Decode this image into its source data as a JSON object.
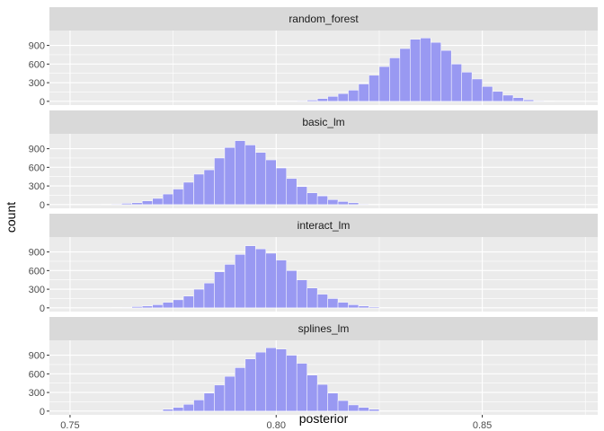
{
  "chart_data": {
    "type": "bar",
    "xlabel": "posterior",
    "ylabel": "count",
    "xlim": [
      0.745,
      0.878
    ],
    "ylim": [
      -60,
      1140
    ],
    "x_ticks": [
      0.75,
      0.8,
      0.85
    ],
    "x_tick_labels": [
      "0.75",
      "0.80",
      "0.85"
    ],
    "y_ticks": [
      0,
      300,
      600,
      900
    ],
    "y_tick_labels": [
      "0",
      "300",
      "600",
      "900"
    ],
    "bin_width": 0.0025,
    "grid": true,
    "colors": {
      "bar_fill": "#9999f2",
      "bar_outline": "#ffffff",
      "panel_bg": "#ebebeb",
      "strip_bg": "#d9d9d9"
    },
    "panels": [
      {
        "name": "random_forest",
        "bins": [
          [
            0.80125,
            2
          ],
          [
            0.80375,
            6
          ],
          [
            0.80625,
            10
          ],
          [
            0.80875,
            20
          ],
          [
            0.81125,
            45
          ],
          [
            0.81375,
            80
          ],
          [
            0.81625,
            125
          ],
          [
            0.81875,
            180
          ],
          [
            0.82125,
            280
          ],
          [
            0.82375,
            420
          ],
          [
            0.82625,
            560
          ],
          [
            0.82875,
            700
          ],
          [
            0.83125,
            850
          ],
          [
            0.83375,
            1000
          ],
          [
            0.83625,
            1020
          ],
          [
            0.83875,
            950
          ],
          [
            0.84125,
            820
          ],
          [
            0.84375,
            600
          ],
          [
            0.84625,
            470
          ],
          [
            0.84875,
            360
          ],
          [
            0.85125,
            240
          ],
          [
            0.85375,
            160
          ],
          [
            0.85625,
            100
          ],
          [
            0.85875,
            60
          ],
          [
            0.86125,
            25
          ],
          [
            0.86375,
            10
          ],
          [
            0.86625,
            4
          ]
        ]
      },
      {
        "name": "basic_lm",
        "bins": [
          [
            0.75125,
            4
          ],
          [
            0.75375,
            2
          ],
          [
            0.75875,
            4
          ],
          [
            0.76125,
            10
          ],
          [
            0.76375,
            20
          ],
          [
            0.76625,
            30
          ],
          [
            0.76875,
            60
          ],
          [
            0.77125,
            100
          ],
          [
            0.77375,
            170
          ],
          [
            0.77625,
            250
          ],
          [
            0.77875,
            360
          ],
          [
            0.78125,
            490
          ],
          [
            0.78375,
            560
          ],
          [
            0.78625,
            750
          ],
          [
            0.78875,
            920
          ],
          [
            0.79125,
            1030
          ],
          [
            0.79375,
            960
          ],
          [
            0.79625,
            840
          ],
          [
            0.79875,
            720
          ],
          [
            0.80125,
            590
          ],
          [
            0.80375,
            420
          ],
          [
            0.80625,
            290
          ],
          [
            0.80875,
            190
          ],
          [
            0.81125,
            140
          ],
          [
            0.81375,
            80
          ],
          [
            0.81625,
            50
          ],
          [
            0.81875,
            30
          ],
          [
            0.82125,
            10
          ],
          [
            0.82375,
            4
          ]
        ]
      },
      {
        "name": "interact_lm",
        "bins": [
          [
            0.75125,
            2
          ],
          [
            0.75875,
            2
          ],
          [
            0.76125,
            4
          ],
          [
            0.76375,
            8
          ],
          [
            0.76625,
            20
          ],
          [
            0.76875,
            30
          ],
          [
            0.77125,
            50
          ],
          [
            0.77375,
            90
          ],
          [
            0.77625,
            130
          ],
          [
            0.77875,
            190
          ],
          [
            0.78125,
            300
          ],
          [
            0.78375,
            400
          ],
          [
            0.78625,
            580
          ],
          [
            0.78875,
            700
          ],
          [
            0.79125,
            860
          ],
          [
            0.79375,
            1000
          ],
          [
            0.79625,
            950
          ],
          [
            0.79875,
            880
          ],
          [
            0.80125,
            770
          ],
          [
            0.80375,
            600
          ],
          [
            0.80625,
            450
          ],
          [
            0.80875,
            320
          ],
          [
            0.81125,
            220
          ],
          [
            0.81375,
            150
          ],
          [
            0.81625,
            90
          ],
          [
            0.81875,
            50
          ],
          [
            0.82125,
            30
          ],
          [
            0.82375,
            15
          ],
          [
            0.82625,
            5
          ]
        ]
      },
      {
        "name": "splines_lm",
        "bins": [
          [
            0.76875,
            2
          ],
          [
            0.77125,
            8
          ],
          [
            0.77375,
            30
          ],
          [
            0.77625,
            60
          ],
          [
            0.77875,
            110
          ],
          [
            0.78125,
            180
          ],
          [
            0.78375,
            290
          ],
          [
            0.78625,
            420
          ],
          [
            0.78875,
            560
          ],
          [
            0.79125,
            700
          ],
          [
            0.79375,
            840
          ],
          [
            0.79625,
            950
          ],
          [
            0.79875,
            1020
          ],
          [
            0.80125,
            1000
          ],
          [
            0.80375,
            900
          ],
          [
            0.80625,
            770
          ],
          [
            0.80875,
            580
          ],
          [
            0.81125,
            430
          ],
          [
            0.81375,
            290
          ],
          [
            0.81625,
            170
          ],
          [
            0.81875,
            100
          ],
          [
            0.82125,
            60
          ],
          [
            0.82375,
            30
          ],
          [
            0.82625,
            5
          ]
        ]
      }
    ]
  }
}
